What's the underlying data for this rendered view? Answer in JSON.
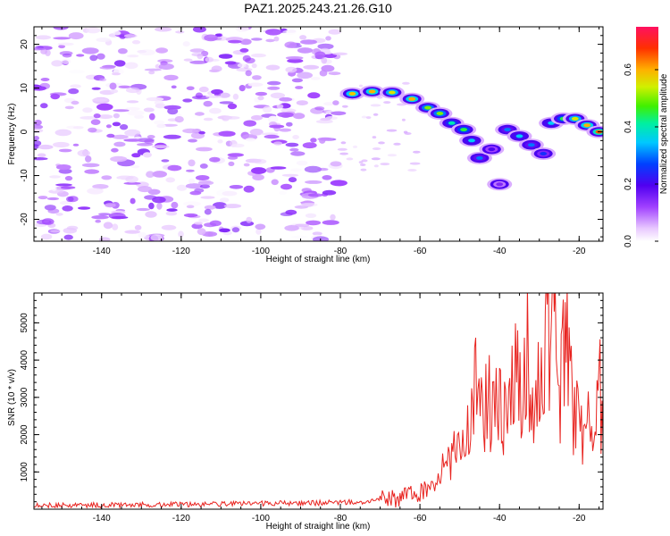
{
  "title": "PAZ1.2025.243.21.26.G10",
  "chart_data": [
    {
      "type": "heatmap",
      "xlabel": "Height of straight line (km)",
      "ylabel": "Frequency (Hz)",
      "xlim": [
        -157,
        -14
      ],
      "ylim": [
        -25,
        24
      ],
      "x_ticks": [
        -140,
        -120,
        -100,
        -80,
        -60,
        -40,
        -20
      ],
      "y_ticks": [
        -20,
        -10,
        0,
        10,
        20
      ],
      "background_noise": {
        "x_range": [
          -157,
          -80
        ],
        "y_range": [
          -25,
          24
        ],
        "amplitude_range": [
          0.0,
          0.15
        ]
      },
      "signal_track": [
        {
          "x": -77,
          "y": 8.7,
          "amp": 0.58
        },
        {
          "x": -72,
          "y": 9.2,
          "amp": 0.6
        },
        {
          "x": -67,
          "y": 9.0,
          "amp": 0.55
        },
        {
          "x": -62,
          "y": 7.5,
          "amp": 0.6
        },
        {
          "x": -58,
          "y": 5.5,
          "amp": 0.5
        },
        {
          "x": -55,
          "y": 4.2,
          "amp": 0.5
        },
        {
          "x": -52,
          "y": 2.0,
          "amp": 0.4
        },
        {
          "x": -49,
          "y": 0.5,
          "amp": 0.45
        },
        {
          "x": -47,
          "y": -2.0,
          "amp": 0.35
        },
        {
          "x": -45,
          "y": -6.0,
          "amp": 0.3
        },
        {
          "x": -42,
          "y": -4.0,
          "amp": 0.2
        },
        {
          "x": -40,
          "y": -12.0,
          "amp": 0.15
        },
        {
          "x": -38,
          "y": 0.5,
          "amp": 0.3
        },
        {
          "x": -35,
          "y": -1.0,
          "amp": 0.35
        },
        {
          "x": -32,
          "y": -3.0,
          "amp": 0.3
        },
        {
          "x": -29,
          "y": -5.0,
          "amp": 0.25
        },
        {
          "x": -27,
          "y": 2.0,
          "amp": 0.35
        },
        {
          "x": -24,
          "y": 3.0,
          "amp": 0.45
        },
        {
          "x": -21,
          "y": 3.0,
          "amp": 0.55
        },
        {
          "x": -18,
          "y": 1.5,
          "amp": 0.6
        },
        {
          "x": -15,
          "y": 0.0,
          "amp": 0.65
        }
      ],
      "colorbar": {
        "label": "Normalized spectral amplitude",
        "range": [
          0.0,
          0.75
        ],
        "ticks": [
          0.0,
          0.2,
          0.4,
          0.6
        ],
        "tick_labels": [
          "0.0",
          "0.2",
          "0.4",
          "0.6"
        ]
      }
    },
    {
      "type": "line",
      "xlabel": "Height of straight line (km)",
      "ylabel": "SNR (10 * v/v)",
      "xlim": [
        -157,
        -14
      ],
      "ylim": [
        0,
        5800
      ],
      "x_ticks": [
        -140,
        -120,
        -100,
        -80,
        -60,
        -40,
        -20
      ],
      "y_ticks": [
        1000,
        2000,
        3000,
        4000,
        5000
      ],
      "line_color": "#e8231f",
      "series": [
        {
          "name": "SNR",
          "x": [
            -157,
            -150,
            -140,
            -130,
            -120,
            -110,
            -100,
            -90,
            -80,
            -75,
            -70,
            -65,
            -62,
            -60,
            -58,
            -56,
            -54,
            -52,
            -50,
            -49,
            -48,
            -47,
            -46,
            -44,
            -42,
            -40,
            -39,
            -38,
            -36,
            -34,
            -33,
            -32,
            -30,
            -29,
            -28,
            -27,
            -26,
            -25,
            -24,
            -23,
            -22,
            -20,
            -18,
            -16,
            -15,
            -14
          ],
          "y": [
            120,
            100,
            110,
            120,
            130,
            140,
            150,
            160,
            180,
            200,
            250,
            300,
            380,
            450,
            600,
            750,
            1100,
            1200,
            2300,
            1500,
            3000,
            2200,
            3400,
            2400,
            3100,
            2600,
            2500,
            2200,
            4000,
            2700,
            4200,
            2500,
            3800,
            2600,
            5900,
            4400,
            4700,
            3000,
            4200,
            5200,
            3000,
            2300,
            2200,
            1900,
            3550,
            1800
          ]
        }
      ]
    }
  ]
}
